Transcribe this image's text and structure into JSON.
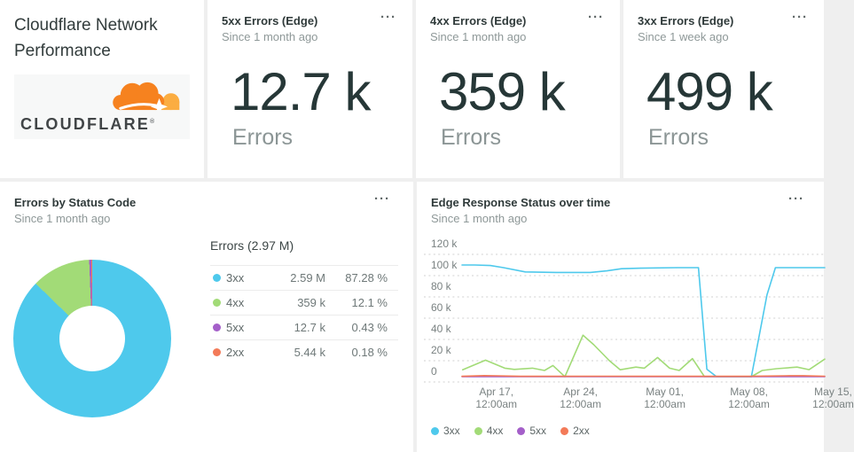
{
  "info_card": {
    "title": "Cloudflare Network Performance",
    "logo_wordmark": "CLOUDFLARE",
    "logo_mark": "®",
    "logo_orange": "#f6821f",
    "logo_light_orange": "#fbad41"
  },
  "stat_cards": [
    {
      "title": "5xx Errors (Edge)",
      "subtitle": "Since 1 month ago",
      "value": "12.7 k",
      "unit": "Errors",
      "menu_icon": "···"
    },
    {
      "title": "4xx Errors (Edge)",
      "subtitle": "Since 1 month ago",
      "value": "359 k",
      "unit": "Errors",
      "menu_icon": "···"
    },
    {
      "title": "3xx Errors (Edge)",
      "subtitle": "Since 1 week ago",
      "value": "499 k",
      "unit": "Errors",
      "menu_icon": "···"
    }
  ],
  "pie_card": {
    "title": "Errors by Status Code",
    "subtitle": "Since 1 month ago",
    "menu_icon": "···",
    "legend_title": "Errors (2.97 M)",
    "rows": [
      {
        "label": "3xx",
        "value": "2.59 M",
        "percent": "87.28 %",
        "color": "#4ec9ec"
      },
      {
        "label": "4xx",
        "value": "359 k",
        "percent": "12.1 %",
        "color": "#a2db77"
      },
      {
        "label": "5xx",
        "value": "12.7 k",
        "percent": "0.43 %",
        "color": "#a45fc9"
      },
      {
        "label": "2xx",
        "value": "5.44 k",
        "percent": "0.18 %",
        "color": "#f37a58"
      }
    ]
  },
  "line_card": {
    "title": "Edge Response Status over time",
    "subtitle": "Since 1 month ago",
    "menu_icon": "···"
  },
  "chart_data": [
    {
      "type": "pie",
      "donut": true,
      "title": "Errors by Status Code",
      "subtitle": "Since 1 month ago",
      "legend_title": "Errors (2.97 M)",
      "labels": [
        "3xx",
        "4xx",
        "5xx",
        "2xx"
      ],
      "values": [
        2590000,
        359000,
        12700,
        5440
      ],
      "values_display": [
        "2.59 M",
        "359 k",
        "12.7 k",
        "5.44 k"
      ],
      "percents": [
        87.28,
        12.1,
        0.43,
        0.18
      ],
      "percents_display": [
        "87.28 %",
        "12.1 %",
        "0.43 %",
        "0.18 %"
      ],
      "colors": [
        "#4ec9ec",
        "#a2db77",
        "#a45fc9",
        "#f37a58"
      ],
      "start_angle_deg": 0,
      "direction": "clockwise",
      "legend_position": "right"
    },
    {
      "type": "line",
      "title": "Edge Response Status over time",
      "subtitle": "Since 1 month ago",
      "grid": "horizontal-dotted",
      "legend_position": "bottom",
      "legend": [
        "3xx",
        "4xx",
        "5xx",
        "2xx"
      ],
      "ylim_thousands": [
        0,
        120
      ],
      "y_ticks": [
        {
          "v": 120,
          "label": "120 k"
        },
        {
          "v": 100,
          "label": "100 k"
        },
        {
          "v": 80,
          "label": "80 k"
        },
        {
          "v": 60,
          "label": "60 k"
        },
        {
          "v": 40,
          "label": "40 k"
        },
        {
          "v": 20,
          "label": "20 k"
        },
        {
          "v": 0,
          "label": "0"
        }
      ],
      "x_domain_days": [
        0,
        30.3
      ],
      "x_ticks": [
        {
          "day": 3,
          "label": "Apr 17,\n12:00am"
        },
        {
          "day": 10,
          "label": "Apr 24,\n12:00am"
        },
        {
          "day": 17,
          "label": "May 01,\n12:00am"
        },
        {
          "day": 24,
          "label": "May 08,\n12:00am"
        },
        {
          "day": 31,
          "label": "May 15,\n12:00am"
        }
      ],
      "y_values_unit": "thousands of errors",
      "series": [
        {
          "name": "3xx",
          "color": "#4ec9ec",
          "below_axis_baseline": false,
          "points": [
            [
              0.15,
              100
            ],
            [
              1.2,
              100
            ],
            [
              2.5,
              99.5
            ],
            [
              3.6,
              97.5
            ],
            [
              5.4,
              93.5
            ],
            [
              8,
              93
            ],
            [
              10.8,
              93
            ],
            [
              12.2,
              94.5
            ],
            [
              13.4,
              96.5
            ],
            [
              15,
              97
            ],
            [
              18,
              97.5
            ],
            [
              19.8,
              97.5
            ],
            [
              20.5,
              2
            ],
            [
              21.3,
              0
            ],
            [
              24.2,
              0
            ],
            [
              25.5,
              72
            ],
            [
              26.2,
              97.5
            ],
            [
              30.3,
              97.5
            ]
          ]
        },
        {
          "name": "4xx",
          "color": "#a2db77",
          "below_axis_baseline": false,
          "points": [
            [
              0.2,
              1.5
            ],
            [
              2.1,
              10.5
            ],
            [
              3.7,
              3
            ],
            [
              4.5,
              1.8
            ],
            [
              6,
              3
            ],
            [
              7,
              0.8
            ],
            [
              7.7,
              5.5
            ],
            [
              8.7,
              0.2
            ],
            [
              10.2,
              34
            ],
            [
              11.1,
              25
            ],
            [
              12.4,
              10
            ],
            [
              13.3,
              1.5
            ],
            [
              14.6,
              4
            ],
            [
              15.3,
              3
            ],
            [
              16.4,
              13
            ],
            [
              17.4,
              3
            ],
            [
              18.2,
              0.8
            ],
            [
              19.3,
              12
            ],
            [
              20.3,
              0
            ],
            [
              24.2,
              0
            ],
            [
              25.1,
              0.8
            ],
            [
              26.3,
              2.5
            ],
            [
              28,
              4
            ],
            [
              29,
              1.6
            ],
            [
              30.3,
              11.5
            ]
          ]
        },
        {
          "name": "5xx",
          "color": "#a45fc9",
          "below_axis_baseline": true,
          "points": [
            [
              0.15,
              0.1
            ],
            [
              10,
              0.1
            ],
            [
              20,
              0.1
            ],
            [
              30.3,
              0.1
            ]
          ]
        },
        {
          "name": "2xx",
          "color": "#f37a58",
          "below_axis_baseline": true,
          "points": [
            [
              0.15,
              0.3
            ],
            [
              2,
              1
            ],
            [
              3,
              0.8
            ],
            [
              5,
              0.3
            ],
            [
              8,
              0.3
            ],
            [
              12,
              0.4
            ],
            [
              16,
              0.3
            ],
            [
              20,
              0.3
            ],
            [
              24,
              0.3
            ],
            [
              27,
              0.8
            ],
            [
              28.5,
              0.9
            ],
            [
              30.3,
              0.4
            ]
          ]
        }
      ]
    }
  ]
}
